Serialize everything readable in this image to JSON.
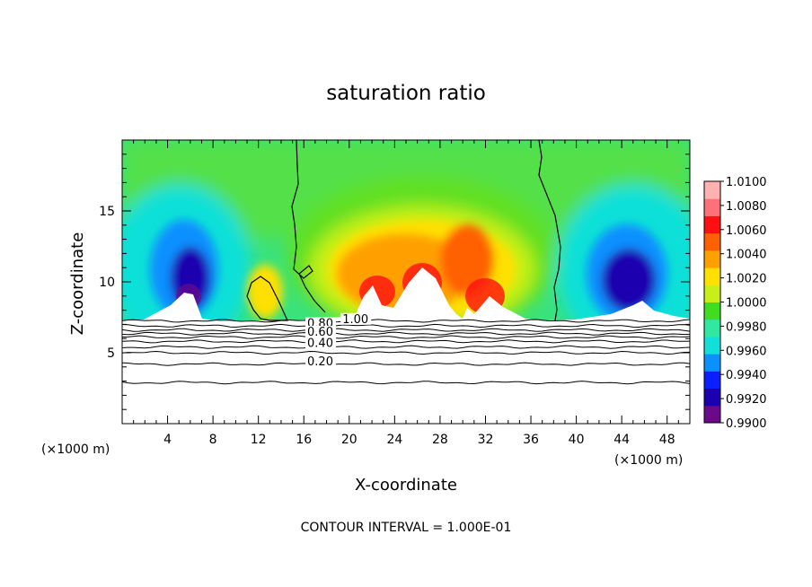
{
  "chart_data": {
    "type": "heatmap",
    "title": "saturation ratio",
    "xlabel": "X-coordinate",
    "ylabel": "Z-coordinate",
    "x_unit_left": "(×1000 m)",
    "x_unit_right": "(×1000 m)",
    "footer": "CONTOUR INTERVAL = 1.000E-01",
    "xlim": [
      0,
      50
    ],
    "ylim": [
      0,
      20
    ],
    "x_ticks": [
      4,
      8,
      12,
      16,
      20,
      24,
      28,
      32,
      36,
      40,
      44,
      48
    ],
    "y_ticks": [
      5,
      10,
      15
    ],
    "x_tick_labels": [
      "4",
      "8",
      "12",
      "16",
      "20",
      "24",
      "28",
      "32",
      "36",
      "40",
      "44",
      "48"
    ],
    "y_tick_labels": [
      "5",
      "10",
      "15"
    ],
    "colorbar": {
      "levels": [
        0.99,
        0.992,
        0.994,
        0.996,
        0.998,
        1.0,
        1.002,
        1.004,
        1.006,
        1.008,
        1.01
      ],
      "labels": [
        "0.9900",
        "0.9920",
        "0.9940",
        "0.9960",
        "0.9980",
        "1.0000",
        "1.0020",
        "1.0040",
        "1.0060",
        "1.0080",
        "1.0100"
      ],
      "colors": [
        "#6a0a8a",
        "#1a00b0",
        "#0a20ff",
        "#0a90ff",
        "#10e0d8",
        "#30e8a0",
        "#40dc20",
        "#c8f018",
        "#ffe000",
        "#ffa000",
        "#ff6000",
        "#ff1010",
        "#ff7078",
        "#ffb0b0"
      ]
    },
    "contour_labels": [
      {
        "text": "1.00",
        "x": 19.4,
        "z": 7.1
      },
      {
        "text": "0.80",
        "x": 16.3,
        "z": 6.8
      },
      {
        "text": "0.60",
        "x": 16.3,
        "z": 6.2
      },
      {
        "text": "0.40",
        "x": 16.3,
        "z": 5.4
      },
      {
        "text": "0.20",
        "x": 16.3,
        "z": 4.1
      }
    ],
    "contour_levels_below": [
      {
        "value": 1.0,
        "z": 7.25
      },
      {
        "value": 0.9,
        "z": 6.9
      },
      {
        "value": 0.8,
        "z": 6.6
      },
      {
        "value": 0.7,
        "z": 6.35
      },
      {
        "value": 0.6,
        "z": 6.1
      },
      {
        "value": 0.5,
        "z": 5.8
      },
      {
        "value": 0.4,
        "z": 5.4
      },
      {
        "value": 0.3,
        "z": 5.0
      },
      {
        "value": 0.2,
        "z": 4.2
      },
      {
        "value": 0.1,
        "z": 2.9
      }
    ],
    "grid": false
  }
}
